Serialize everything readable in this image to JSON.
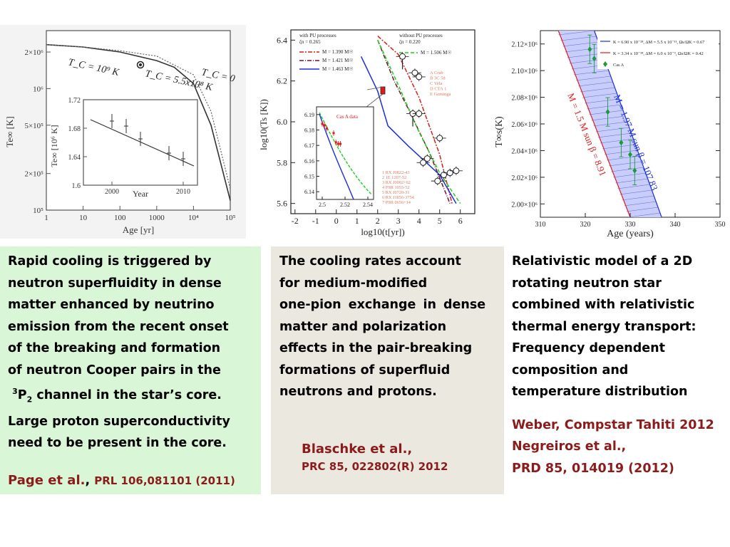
{
  "plots": {
    "page": {
      "y_tick_labels": [
        "2×10⁶",
        "10⁶",
        "5×10⁵",
        "2×10⁵",
        "10⁵"
      ],
      "x_tick_labels": [
        "1",
        "10",
        "100",
        "1000",
        "10⁴",
        "10⁵"
      ],
      "xlabel": "Age [yr]",
      "ylabel": "Te∞ [K]",
      "curve_labels": [
        "T_C = 10⁹ K",
        "T_C = 5.5x10⁸ K",
        "T_C = 0"
      ],
      "inset": {
        "y_tick_labels": [
          "1.72",
          "1.68",
          "1.64",
          "1.6"
        ],
        "x_tick_labels": [
          "2000",
          "2010"
        ],
        "xlabel": "Year",
        "ylabel": "Te∞ [10⁶ K]"
      }
    },
    "blaschke": {
      "y_tick_labels": [
        "6.4",
        "6.2",
        "6.0",
        "5.8",
        "5.6"
      ],
      "x_tick_labels": [
        "-2",
        "-1",
        "0",
        "1",
        "2",
        "3",
        "4",
        "5",
        "6"
      ],
      "xlabel": "log10(t[yr])",
      "ylabel": "log10(Ts [K])",
      "legend_left_header": [
        "with PU processes",
        "ζn = 0.265"
      ],
      "legend_right_header": [
        "without PU processes",
        "ζn = 0.220"
      ],
      "legend_left": [
        "M = 1.390 M☉",
        "M = 1.421 M☉",
        "M = 1.463 M☉"
      ],
      "legend_right": [
        "M = 1.506 M☉"
      ],
      "source_list_1": [
        "A Crab",
        "B 3C 58",
        "C Vela",
        "D CTA 1",
        "E Geminga"
      ],
      "source_list_2": [
        "1 RX J0822-43",
        "2 1E 1207-52",
        "3 RX J0002+62",
        "4 PSR 1055-52",
        "5 RX J0720-31",
        "6 RX J1856-3754",
        "7 PSR 0656+14"
      ],
      "inset": {
        "label": "Cas A data",
        "y_tick_labels": [
          "6.19",
          "6.18",
          "6.17",
          "6.16",
          "6.15",
          "6.14"
        ],
        "x_tick_labels": [
          "2.5",
          "2.52",
          "2.54"
        ]
      }
    },
    "weber": {
      "y_tick_labels": [
        "2.12×10⁶",
        "2.10×10⁶",
        "2.08×10⁶",
        "2.06×10⁶",
        "2.04×10⁶",
        "2.02×10⁶",
        "2.00×10⁶"
      ],
      "x_tick_labels": [
        "310",
        "320",
        "330",
        "340",
        "350"
      ],
      "xlabel": "Age (years)",
      "ylabel": "T∞s(K)",
      "legend": [
        "K = 6.90 x 10⁻²⁸, ΔM = 5.5 x 10⁻¹¹, Ωs/ΩK = 0.67",
        "K = 3.34 x 10⁻²⁸, ΔM = 6.0 x 10⁻⁹, Ωs/ΩK = 0.42",
        "Cas A"
      ],
      "band_labels": [
        "M = 1.5 M sun β = 8.91",
        "M = 1.97 M sun β = 107.83"
      ]
    }
  },
  "chart_data": [
    {
      "type": "line",
      "xlabel": "Age [yr]",
      "ylabel": "Te∞ [K]",
      "series": [
        {
          "name": "T_C = 10⁹ K",
          "x": [
            1,
            10,
            100,
            1000,
            3000,
            10000,
            30000,
            100000
          ],
          "y": [
            2300000,
            2200000,
            2000000,
            1700000,
            1500000,
            1100000,
            500000,
            120000
          ]
        },
        {
          "name": "T_C = 0",
          "x": [
            1,
            10,
            100,
            1000,
            10000,
            30000,
            100000
          ],
          "y": [
            2300000,
            2200000,
            2050000,
            1850000,
            1300000,
            650000,
            150000
          ]
        }
      ]
    },
    {
      "type": "line",
      "xlabel": "log10(t[yr])",
      "ylabel": "log10(Ts [K])",
      "ylim": [
        5.6,
        6.45
      ],
      "series": [
        {
          "name": "M = 1.390 M☉",
          "x": [
            2,
            3,
            4,
            5,
            5.6
          ],
          "y": [
            6.42,
            6.33,
            6.12,
            5.84,
            5.6
          ]
        },
        {
          "name": "M = 1.421 M☉",
          "x": [
            2,
            2.8,
            3.5,
            4.5,
            5.5
          ],
          "y": [
            6.4,
            6.2,
            6.06,
            5.85,
            5.6
          ]
        },
        {
          "name": "M = 1.463 M☉",
          "x": [
            1.2,
            2,
            2.5,
            3.5,
            5,
            5.8
          ],
          "y": [
            6.32,
            6.15,
            5.98,
            5.88,
            5.74,
            5.6
          ]
        },
        {
          "name": "M = 1.506 M☉",
          "x": [
            2,
            3,
            4,
            5,
            6
          ],
          "y": [
            6.4,
            6.18,
            5.95,
            5.75,
            5.6
          ]
        }
      ]
    },
    {
      "type": "scatter",
      "xlabel": "Age (years)",
      "ylabel": "T∞s(K)",
      "xlim": [
        310,
        350
      ],
      "ylim": [
        1990000,
        2130000
      ],
      "series": [
        {
          "name": "Cas A",
          "x": [
            321,
            322,
            325,
            328,
            330,
            331
          ],
          "y": [
            2116000,
            2109000,
            2069000,
            2046000,
            2037000,
            2025000
          ]
        }
      ]
    }
  ],
  "boxes": {
    "green": {
      "lines": [
        "Rapid cooling is triggered by",
        " neutron superfluidity in dense",
        " matter enhanced by neutrino",
        " emission from the recent onset",
        "of the breaking and formation",
        " of neutron Cooper pairs in the"
      ],
      "channel_sup": "3",
      "channel_letter": "P",
      "channel_sub": "2",
      "channel_rest": " channel in the star’s core.",
      "lines2": [
        "Large proton superconductivity",
        "need to be present in the core."
      ],
      "ref_name": "Page et al.",
      "ref_sep": ", ",
      "ref_journal": "PRL 106,081101 (2011)",
      "bg": "#d9f7d6"
    },
    "beige": {
      "lines": [
        "The cooling rates account",
        "for medium-modified",
        "one-pion exchange in dense",
        "matter and polarization",
        "effects in the pair-breaking",
        "formations of superfluid",
        "neutrons and protons."
      ],
      "ref_lines": [
        "Blaschke et al.,",
        "PRC 85, 022802(R) 2012"
      ],
      "bg": "#ebe8e0"
    },
    "white": {
      "lines": [
        "Relativistic model of a 2D",
        "rotating neutron star",
        "combined with relativistic",
        "thermal energy transport:",
        "Frequency dependent",
        "composition and",
        " temperature distribution"
      ],
      "ref_lines": [
        "Weber, Compstar Tahiti 2012",
        "Negreiros et al.,",
        " PRD 85, 014019 (2012)"
      ]
    }
  },
  "colors": {
    "ref_red": "#8c1c1c",
    "green_bg": "#d9f7d6",
    "beige_bg": "#ebe8e0"
  }
}
